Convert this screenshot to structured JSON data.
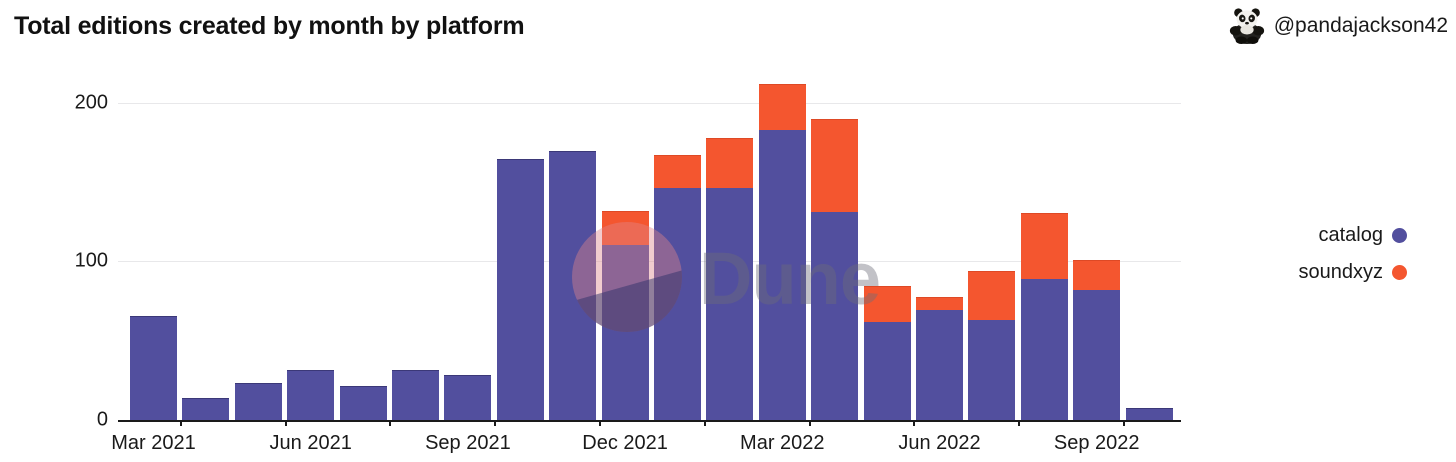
{
  "header": {
    "title": "Total editions created by month by platform",
    "user_handle": "@pandajackson42"
  },
  "watermark": {
    "text": "Dune"
  },
  "legend": [
    {
      "label": "catalog",
      "color": "#524F9E"
    },
    {
      "label": "soundxyz",
      "color": "#F4562F"
    }
  ],
  "chart_data": {
    "type": "bar",
    "stacked": true,
    "title": "Total editions created by month by platform",
    "xlabel": "",
    "ylabel": "",
    "ylim": [
      0,
      220
    ],
    "yticks": [
      0,
      100,
      200
    ],
    "grid": "horizontal",
    "legend_position": "right",
    "categories": [
      "Mar 2021",
      "Apr 2021",
      "May 2021",
      "Jun 2021",
      "Jul 2021",
      "Aug 2021",
      "Sep 2021",
      "Oct 2021",
      "Nov 2021",
      "Dec 2021",
      "Jan 2022",
      "Feb 2022",
      "Mar 2022",
      "Apr 2022",
      "May 2022",
      "Jun 2022",
      "Jul 2022",
      "Aug 2022",
      "Sep 2022",
      "Oct 2022"
    ],
    "x_tick_label_indices": [
      0,
      3,
      6,
      9,
      12,
      15,
      18
    ],
    "series": [
      {
        "name": "catalog",
        "color": "#524F9E",
        "values": [
          65,
          13,
          23,
          31,
          21,
          31,
          28,
          164,
          169,
          110,
          146,
          146,
          183,
          131,
          62,
          69,
          63,
          89,
          82,
          7
        ]
      },
      {
        "name": "soundxyz",
        "color": "#F4562F",
        "values": [
          0,
          0,
          0,
          0,
          0,
          0,
          0,
          0,
          0,
          21,
          20,
          31,
          28,
          58,
          22,
          8,
          30,
          41,
          18,
          0
        ]
      }
    ]
  }
}
